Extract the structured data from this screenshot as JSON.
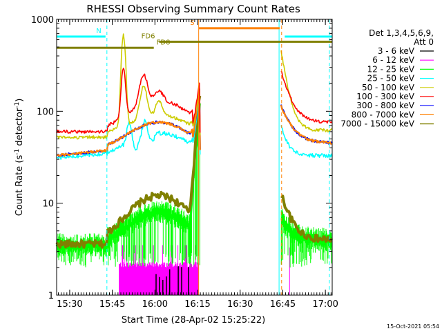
{
  "chart_data": {
    "type": "line",
    "title": "RHESSI Observing Summary Count Rates",
    "xlabel": "Start Time (28-Apr-02 15:25:22)",
    "ylabel_main": "Count Rate (s",
    "ylabel_sup1": "-1",
    "ylabel_mid": " detector",
    "ylabel_sup2": "-1",
    "ylabel_end": ")",
    "yscale": "log",
    "ylim": [
      1,
      1000
    ],
    "xlim_minutes": [
      0,
      97
    ],
    "x_unit": "minutes after 15:25:22",
    "x_ticks": [
      {
        "label": "15:30",
        "t": 4.6
      },
      {
        "label": "15:45",
        "t": 19.6
      },
      {
        "label": "16:00",
        "t": 34.6
      },
      {
        "label": "16:15",
        "t": 49.6
      },
      {
        "label": "16:30",
        "t": 64.6
      },
      {
        "label": "16:45",
        "t": 79.6
      },
      {
        "label": "17:00",
        "t": 94.6
      }
    ],
    "y_ticks": [
      {
        "label": "1",
        "v": 1
      },
      {
        "label": "10",
        "v": 10
      },
      {
        "label": "100",
        "v": 100
      },
      {
        "label": "1000",
        "v": 1000
      }
    ],
    "legend_header": [
      "Det 1,3,4,5,6,9,",
      "Att 0"
    ],
    "legend_placement": "right",
    "series": [
      {
        "name": "3 - 6 keV",
        "color": "#000000"
      },
      {
        "name": "6 - 12 keV",
        "color": "#ff00ff"
      },
      {
        "name": "12 - 25 keV",
        "color": "#00ff00"
      },
      {
        "name": "25 - 50 keV",
        "color": "#00ffff"
      },
      {
        "name": "50 - 100 keV",
        "color": "#cccc00"
      },
      {
        "name": "100 - 300 keV",
        "color": "#ff0000"
      },
      {
        "name": "300 - 800 keV",
        "color": "#0000ff"
      },
      {
        "name": "800 - 7000 keV",
        "color": "#ff8000"
      },
      {
        "name": "7000 - 15000 keV",
        "color": "#808000"
      }
    ],
    "gaps_minutes": [
      [
        50.5,
        79.0
      ]
    ],
    "flags": [
      {
        "label": "N",
        "color": "#00ffff",
        "segments": [
          [
            0,
            17.2
          ],
          [
            80.3,
            97
          ]
        ],
        "level": 650
      },
      {
        "label": "S",
        "color": "#ff8000",
        "segments": [
          [
            50.0,
            78.5
          ]
        ],
        "level": 800
      },
      {
        "label": "FD6",
        "color": "#808000",
        "segments": [
          [
            36.1,
            97
          ]
        ],
        "level": 570
      },
      {
        "label": "FD8",
        "color": "#808000",
        "segments": [
          [
            0,
            34.2
          ]
        ],
        "level": 490
      }
    ],
    "vertical_markers": [
      {
        "t": 17.7,
        "color": "#00ffff",
        "style": "dashed"
      },
      {
        "t": 50.0,
        "color": "#ff8000",
        "style": "solid"
      },
      {
        "t": 78.3,
        "color": "#00ffff",
        "style": "solid"
      },
      {
        "t": 79.2,
        "color": "#ff8000",
        "style": "dashed"
      },
      {
        "t": 96.0,
        "color": "#00ffff",
        "style": "dashed"
      }
    ]
  },
  "footer_timestamp": "15-Oct-2021 05:54"
}
